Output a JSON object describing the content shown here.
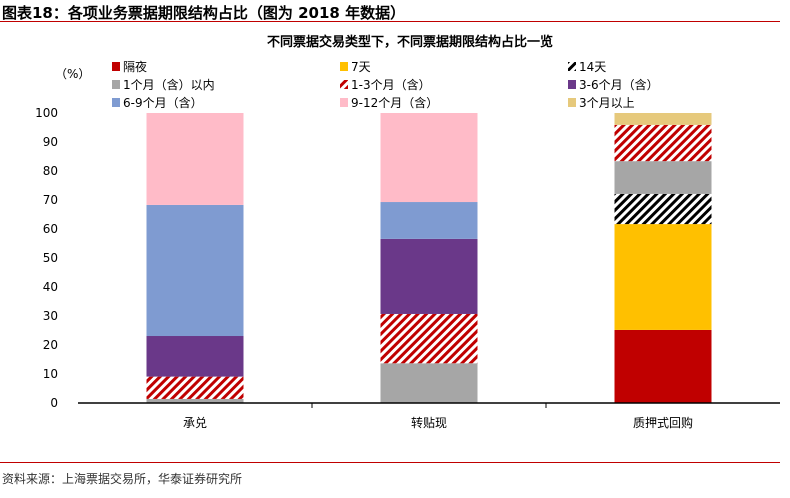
{
  "header": "图表18：各项业务票据期限结构占比（图为 2018 年数据）",
  "source": "资料来源：上海票据交易所，华泰证券研究所",
  "chart_data": {
    "type": "stacked-bar",
    "title": "不同票据交易类型下，不同票据期限结构占比一览",
    "ylabel": "（%）",
    "ylim": [
      0,
      100
    ],
    "yticks": [
      0,
      10,
      20,
      30,
      40,
      50,
      60,
      70,
      80,
      90,
      100
    ],
    "categories": [
      "承兑",
      "转贴现",
      "质押式回购"
    ],
    "legend_position": "top",
    "grid": false,
    "series": [
      {
        "name": "隔夜",
        "color": "#c00000",
        "pattern": "solid",
        "values": [
          0,
          0,
          25.2
        ]
      },
      {
        "name": "7天",
        "color": "#ffc000",
        "pattern": "solid",
        "values": [
          0,
          0,
          36.5
        ]
      },
      {
        "name": "14天",
        "color": "#000000",
        "pattern": "hatch",
        "values": [
          0,
          0,
          10.4
        ]
      },
      {
        "name": "1个月（含）以内",
        "color": "#a6a6a6",
        "pattern": "solid",
        "values": [
          1.4,
          13.7,
          11.3
        ]
      },
      {
        "name": "1-3个月（含）",
        "color": "#c00000",
        "pattern": "hatch",
        "values": [
          7.7,
          17.0,
          12.5
        ]
      },
      {
        "name": "3-6个月（含）",
        "color": "#6a3889",
        "pattern": "solid",
        "values": [
          14.0,
          25.9,
          0
        ]
      },
      {
        "name": "6-9个月（含）",
        "color": "#7f9bd1",
        "pattern": "solid",
        "values": [
          45.2,
          12.7,
          0
        ]
      },
      {
        "name": "9-12个月（含）",
        "color": "#ffbbc8",
        "pattern": "solid",
        "values": [
          31.7,
          30.7,
          0
        ]
      },
      {
        "name": "3个月以上",
        "color": "#e6c97c",
        "pattern": "solid",
        "values": [
          0,
          0,
          4.1
        ]
      }
    ]
  }
}
